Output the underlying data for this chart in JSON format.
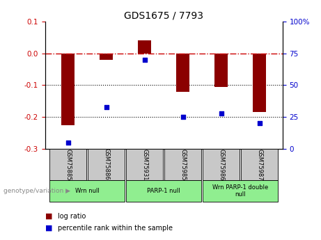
{
  "title": "GDS1675 / 7793",
  "samples": [
    "GSM75885",
    "GSM75886",
    "GSM75931",
    "GSM75985",
    "GSM75986",
    "GSM75987"
  ],
  "log_ratio": [
    -0.225,
    -0.02,
    0.04,
    -0.12,
    -0.105,
    -0.185
  ],
  "percentile_rank": [
    5,
    33,
    70,
    25,
    28,
    20
  ],
  "ylim_left": [
    -0.3,
    0.1
  ],
  "ylim_right": [
    0,
    100
  ],
  "yticks_left": [
    -0.3,
    -0.2,
    -0.1,
    0.0,
    0.1
  ],
  "yticks_right": [
    0,
    25,
    50,
    75,
    100
  ],
  "groups": [
    {
      "label": "Wrn null",
      "samples": [
        "GSM75885",
        "GSM75886"
      ],
      "color": "#90EE90"
    },
    {
      "label": "PARP-1 null",
      "samples": [
        "GSM75931",
        "GSM75985"
      ],
      "color": "#90EE90"
    },
    {
      "label": "Wrn PARP-1 double\nnull",
      "samples": [
        "GSM75986",
        "GSM75987"
      ],
      "color": "#90EE90"
    }
  ],
  "bar_color": "#8B0000",
  "dot_color": "#0000CD",
  "zero_line_color": "#CC0000",
  "grid_color": "#000000",
  "sample_box_color": "#C8C8C8",
  "legend_bar_label": "log ratio",
  "legend_dot_label": "percentile rank within the sample",
  "x_positions": [
    0,
    1,
    2,
    3,
    4,
    5
  ],
  "bar_width": 0.35
}
